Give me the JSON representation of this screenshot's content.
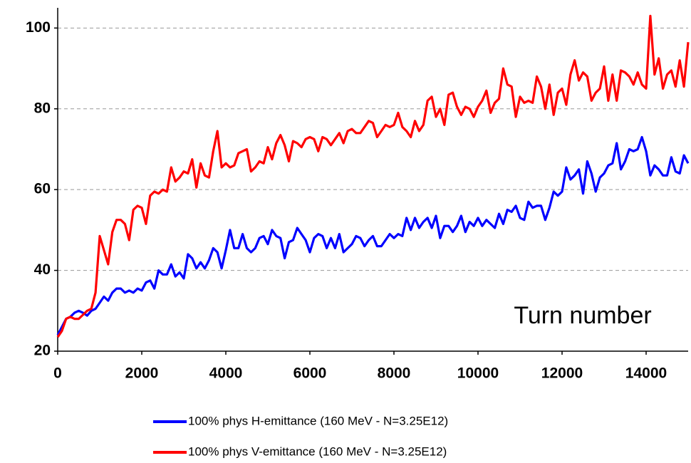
{
  "chart_data": {
    "type": "line",
    "annotation": "Turn number",
    "x": [
      0,
      100,
      200,
      300,
      400,
      500,
      600,
      700,
      800,
      900,
      1000,
      1100,
      1200,
      1300,
      1400,
      1500,
      1600,
      1700,
      1800,
      1900,
      2000,
      2100,
      2200,
      2300,
      2400,
      2500,
      2600,
      2700,
      2800,
      2900,
      3000,
      3100,
      3200,
      3300,
      3400,
      3500,
      3600,
      3700,
      3800,
      3900,
      4000,
      4100,
      4200,
      4300,
      4400,
      4500,
      4600,
      4700,
      4800,
      4900,
      5000,
      5100,
      5200,
      5300,
      5400,
      5500,
      5600,
      5700,
      5800,
      5900,
      6000,
      6100,
      6200,
      6300,
      6400,
      6500,
      6600,
      6700,
      6800,
      6900,
      7000,
      7100,
      7200,
      7300,
      7400,
      7500,
      7600,
      7700,
      7800,
      7900,
      8000,
      8100,
      8200,
      8300,
      8400,
      8500,
      8600,
      8700,
      8800,
      8900,
      9000,
      9100,
      9200,
      9300,
      9400,
      9500,
      9600,
      9700,
      9800,
      9900,
      10000,
      10100,
      10200,
      10300,
      10400,
      10500,
      10600,
      10700,
      10800,
      10900,
      11000,
      11100,
      11200,
      11300,
      11400,
      11500,
      11600,
      11700,
      11800,
      11900,
      12000,
      12100,
      12200,
      12300,
      12400,
      12500,
      12600,
      12700,
      12800,
      12900,
      13000,
      13100,
      13200,
      13300,
      13400,
      13500,
      13600,
      13700,
      13800,
      13900,
      14000,
      14100,
      14200,
      14300,
      14400,
      14500,
      14600,
      14700,
      14800,
      14900,
      15000
    ],
    "series": [
      {
        "name": "100% phys H-emittance (160 MeV - N=3.25E12)",
        "color": "#0000ff",
        "values": [
          24,
          26,
          28,
          28.5,
          29.5,
          30,
          29.5,
          28.8,
          30,
          30.5,
          32,
          33.5,
          32.5,
          34.5,
          35.5,
          35.5,
          34.5,
          35,
          34.5,
          35.5,
          35,
          37,
          37.5,
          35.5,
          40,
          39,
          39,
          41.5,
          38.5,
          39.5,
          38,
          44,
          43,
          40.5,
          42,
          40.5,
          42.5,
          45.5,
          44.5,
          40.5,
          45,
          50,
          45.5,
          45.5,
          49,
          45.5,
          44.5,
          45.5,
          48,
          48.5,
          46.5,
          50,
          48.5,
          48,
          43,
          47,
          47.5,
          50.5,
          49,
          47.5,
          44.5,
          48,
          49,
          48.5,
          45.5,
          48,
          45.5,
          49,
          44.5,
          45.5,
          46.5,
          48.5,
          48,
          46,
          47.5,
          48.5,
          46,
          46,
          47.5,
          49,
          48,
          49,
          48.5,
          53,
          50,
          53,
          50.5,
          52,
          53,
          50.5,
          53.5,
          48,
          51,
          51,
          49.5,
          51,
          53.5,
          49.5,
          52,
          51,
          53,
          51,
          52.5,
          51.5,
          50.5,
          54,
          51.5,
          55,
          54.5,
          56,
          53,
          52.5,
          57,
          55.5,
          56,
          56,
          52.5,
          55.5,
          59.5,
          58.5,
          59.5,
          65.5,
          62.5,
          63.5,
          65,
          59,
          67,
          64,
          59.5,
          63,
          64,
          66,
          66.5,
          71.5,
          65,
          67,
          70,
          69.5,
          70,
          73,
          69.5,
          63.5,
          66,
          65,
          63.5,
          63.5,
          68,
          64.5,
          64,
          68.5,
          66.5
        ]
      },
      {
        "name": "100% phys V-emittance (160 MeV - N=3.25E12)",
        "color": "#ff0000",
        "values": [
          23.5,
          25,
          28,
          28.5,
          28,
          28,
          29,
          30,
          30.5,
          34.5,
          48.5,
          45,
          41.5,
          49.5,
          52.5,
          52.5,
          51.5,
          47.5,
          55,
          56,
          55.5,
          51.5,
          58.5,
          59.5,
          59,
          60,
          59.5,
          65.5,
          62,
          63,
          64.5,
          64,
          67.5,
          60.5,
          66.5,
          63.5,
          63,
          69.5,
          74.5,
          65.5,
          66.5,
          65.5,
          66,
          69,
          69.5,
          70,
          64.5,
          65.5,
          67,
          66.5,
          70.5,
          67.5,
          71.5,
          73.5,
          71,
          67,
          72,
          71.5,
          70.5,
          72.5,
          73,
          72.5,
          69.5,
          73,
          72.5,
          71,
          72.5,
          74,
          71.5,
          74.5,
          75,
          74,
          74,
          75.5,
          77,
          76.5,
          73,
          74.5,
          76,
          75.5,
          76,
          79,
          75.5,
          74.5,
          73,
          77,
          74.5,
          76,
          82,
          83,
          78,
          80,
          76,
          83.5,
          84,
          80.5,
          78.5,
          80.5,
          80,
          78,
          80.5,
          82,
          84.5,
          79,
          81.5,
          82.5,
          90,
          86,
          85.5,
          78,
          83,
          81.5,
          82,
          81.5,
          88,
          85.5,
          80,
          86,
          78.5,
          84,
          85,
          81,
          88.5,
          92,
          87,
          89,
          88,
          82,
          84,
          85,
          90.5,
          82,
          88.5,
          82,
          89.5,
          89,
          88,
          86,
          89,
          86,
          85,
          103,
          88.5,
          92.5,
          85,
          88.5,
          89.5,
          85.5,
          92,
          85.5,
          96.5
        ]
      }
    ],
    "xlim": [
      0,
      15000
    ],
    "xticks": [
      0,
      2000,
      4000,
      6000,
      8000,
      10000,
      12000,
      14000
    ],
    "ylim": [
      20,
      105
    ],
    "yticks": [
      20,
      40,
      60,
      80,
      100
    ],
    "grid": true,
    "legend": "bottom"
  }
}
